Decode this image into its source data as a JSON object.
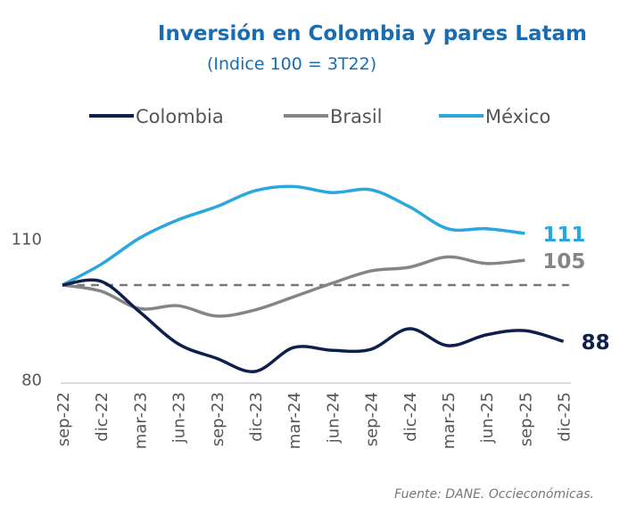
{
  "chart_data": {
    "type": "line",
    "title": "Inversión en Colombia y pares Latam",
    "subtitle": "(Indice 100 = 3T22)",
    "categories": [
      "sep-22",
      "dic-22",
      "mar-23",
      "jun-23",
      "sep-23",
      "dic-23",
      "mar-24",
      "jun-24",
      "sep-24",
      "dic-24",
      "mar-25",
      "jun-25",
      "sep-25",
      "dic-25"
    ],
    "yticks": [
      80,
      110
    ],
    "ylim": [
      80,
      125
    ],
    "reference_line": 100,
    "legend_position": "top",
    "grid": false,
    "series": [
      {
        "name": "Colombia",
        "color": "#0f1f4d",
        "values": [
          100,
          100.8,
          94.3,
          87.5,
          84.4,
          81.6,
          86.7,
          86.1,
          86.3,
          90.7,
          87.1,
          89.4,
          90.3,
          88
        ],
        "end_label": "88"
      },
      {
        "name": "Brasil",
        "color": "#858585",
        "values": [
          100,
          98.7,
          95,
          95.6,
          93.4,
          94.7,
          97.5,
          100.4,
          103,
          103.8,
          106,
          104.6,
          105.3,
          null
        ],
        "end_label": "105"
      },
      {
        "name": "México",
        "color": "#2aa7df",
        "values": [
          100,
          104.4,
          110,
          113.9,
          116.7,
          120.1,
          121,
          119.7,
          120.3,
          116.7,
          112,
          112,
          111,
          null
        ],
        "end_label": "111"
      }
    ],
    "source": "Fuente: DANE. Occieconómicas.",
    "title_color": "#1a6cb0"
  }
}
